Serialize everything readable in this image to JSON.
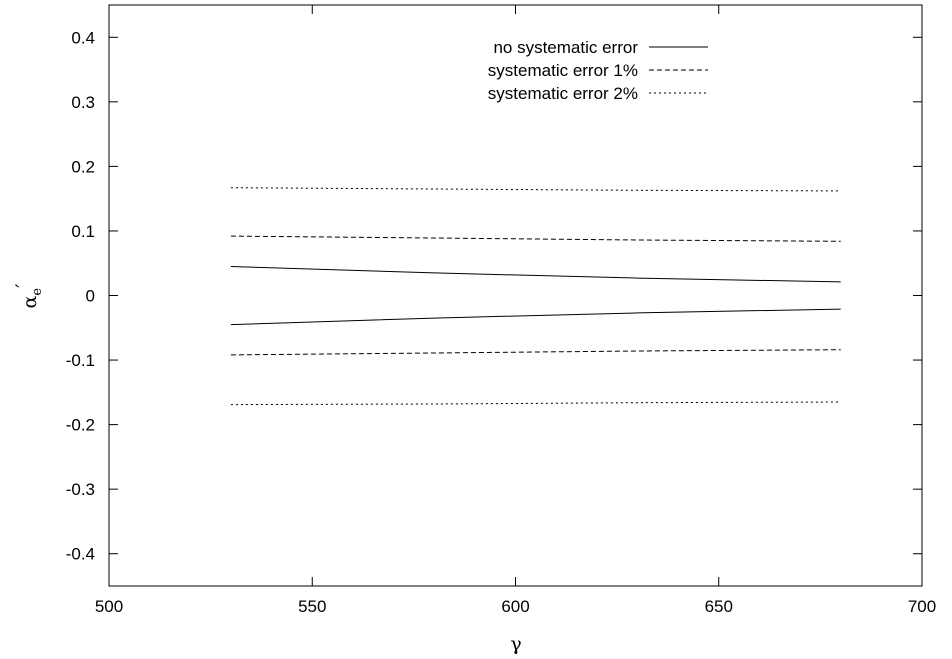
{
  "chart_data": {
    "type": "line",
    "xlabel": "γ",
    "ylabel": "α",
    "ylabel_sub": "e",
    "ylabel_prime": "′",
    "xlim": [
      500,
      700
    ],
    "ylim": [
      -0.45,
      0.45
    ],
    "xticks": [
      {
        "value": 500,
        "label": "500"
      },
      {
        "value": 550,
        "label": "550"
      },
      {
        "value": 600,
        "label": "600"
      },
      {
        "value": 650,
        "label": "650"
      },
      {
        "value": 700,
        "label": "700"
      }
    ],
    "yticks": [
      {
        "value": 0.4,
        "label": "0.4"
      },
      {
        "value": 0.3,
        "label": "0.3"
      },
      {
        "value": 0.2,
        "label": "0.2"
      },
      {
        "value": 0.1,
        "label": "0.1"
      },
      {
        "value": 0,
        "label": "0"
      },
      {
        "value": -0.1,
        "label": "-0.1"
      },
      {
        "value": -0.2,
        "label": "-0.2"
      },
      {
        "value": -0.3,
        "label": "-0.3"
      },
      {
        "value": -0.4,
        "label": "-0.4"
      }
    ],
    "grid": false,
    "legend_position": "top-right",
    "legend": [
      {
        "label": "no systematic error",
        "style": "solid"
      },
      {
        "label": "systematic error 1%",
        "style": "dashed"
      },
      {
        "label": "systematic error 2%",
        "style": "dotted"
      }
    ],
    "series": [
      {
        "name": "no systematic error",
        "style": "solid",
        "x": [
          530,
          580,
          630,
          680
        ],
        "y": [
          0.045,
          0.035,
          0.027,
          0.021
        ]
      },
      {
        "name": "no systematic error",
        "style": "solid",
        "x": [
          530,
          580,
          630,
          680
        ],
        "y": [
          -0.045,
          -0.035,
          -0.027,
          -0.021
        ]
      },
      {
        "name": "systematic error 1%",
        "style": "dashed",
        "x": [
          530,
          580,
          630,
          680
        ],
        "y": [
          0.092,
          0.089,
          0.086,
          0.084
        ]
      },
      {
        "name": "systematic error 1%",
        "style": "dashed",
        "x": [
          530,
          580,
          630,
          680
        ],
        "y": [
          -0.092,
          -0.089,
          -0.086,
          -0.084
        ]
      },
      {
        "name": "systematic error 2%",
        "style": "dotted",
        "x": [
          530,
          580,
          630,
          680
        ],
        "y": [
          0.167,
          0.165,
          0.163,
          0.162
        ]
      },
      {
        "name": "systematic error 2%",
        "style": "dotted",
        "x": [
          530,
          580,
          630,
          680
        ],
        "y": [
          -0.169,
          -0.168,
          -0.166,
          -0.165
        ]
      }
    ]
  }
}
